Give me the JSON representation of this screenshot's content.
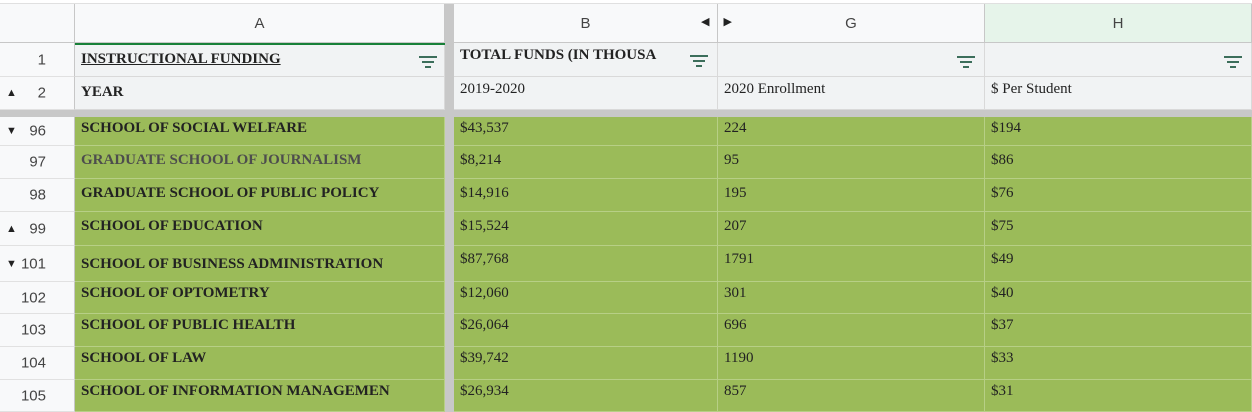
{
  "columns": {
    "a": "A",
    "b": "B",
    "g": "G",
    "h": "H"
  },
  "header_rows": [
    {
      "row": "1",
      "a": "INSTRUCTIONAL FUNDING",
      "b": "TOTAL FUNDS (IN THOUSA",
      "g": "",
      "h": ""
    },
    {
      "row": "2",
      "a": "YEAR",
      "b": "2019-2020",
      "g": "2020 Enrollment",
      "h": "$ Per Student"
    }
  ],
  "rows": [
    {
      "row": "96",
      "school": "SCHOOL OF SOCIAL WELFARE",
      "funds": "$43,537",
      "enrollment": "224",
      "per_student": "$194"
    },
    {
      "row": "97",
      "school": "GRADUATE SCHOOL OF JOURNALISM",
      "funds": "$8,214",
      "enrollment": "95",
      "per_student": "$86"
    },
    {
      "row": "98",
      "school": "GRADUATE SCHOOL OF PUBLIC POLICY",
      "funds": "$14,916",
      "enrollment": "195",
      "per_student": "$76"
    },
    {
      "row": "99",
      "school": "SCHOOL OF EDUCATION",
      "funds": "$15,524",
      "enrollment": "207",
      "per_student": "$75"
    },
    {
      "row": "101",
      "school": "SCHOOL OF BUSINESS ADMINISTRATION",
      "funds": "$87,768",
      "enrollment": "1791",
      "per_student": "$49"
    },
    {
      "row": "102",
      "school": "SCHOOL OF OPTOMETRY",
      "funds": "$12,060",
      "enrollment": "301",
      "per_student": "$40"
    },
    {
      "row": "103",
      "school": "SCHOOL OF PUBLIC HEALTH",
      "funds": "$26,064",
      "enrollment": "696",
      "per_student": "$37"
    },
    {
      "row": "104",
      "school": "SCHOOL OF LAW",
      "funds": "$39,742",
      "enrollment": "1190",
      "per_student": "$33"
    },
    {
      "row": "105",
      "school": "SCHOOL OF INFORMATION MANAGEMEN",
      "funds": "$26,934",
      "enrollment": "857",
      "per_student": "$31"
    }
  ],
  "icons": {
    "filter": "filter-icon",
    "expand": "triangle-up-icon",
    "collapse": "triangle-down-icon",
    "hidden_cols": "chevron-left-right-icon"
  },
  "colors": {
    "data_fill": "#9bbb59",
    "header_fill": "#f1f3f4",
    "selected_col": "#e6f4ea"
  }
}
